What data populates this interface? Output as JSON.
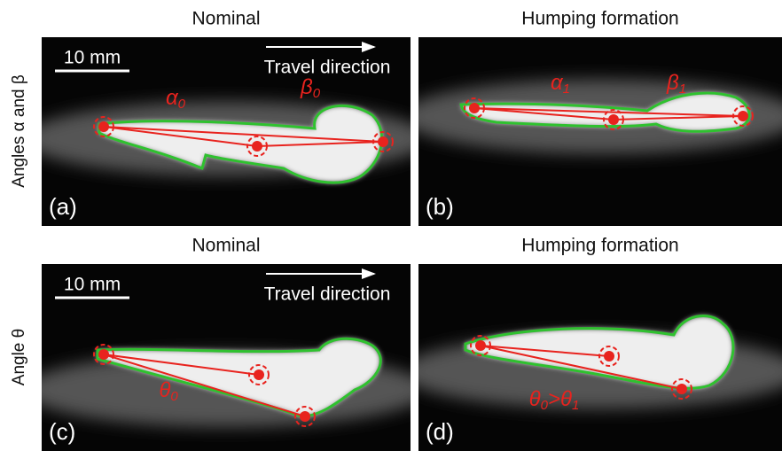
{
  "row_labels": [
    "Angles α and β",
    "Angle θ"
  ],
  "panels": [
    {
      "title": "Nominal",
      "label": "(a)",
      "scale_bar": "10 mm",
      "direction": "Travel direction",
      "angles": [
        [
          "α",
          "0"
        ],
        [
          "β",
          "0"
        ]
      ]
    },
    {
      "title": "Humping formation",
      "label": "(b)",
      "angles": [
        [
          "α",
          "1"
        ],
        [
          "β",
          "1"
        ]
      ]
    },
    {
      "title": "Nominal",
      "label": "(c)",
      "scale_bar": "10 mm",
      "direction": "Travel direction",
      "angles": [
        [
          "θ",
          "0"
        ]
      ]
    },
    {
      "title": "Humping formation",
      "label": "(d)",
      "angles": [
        [
          "θ",
          "0",
          ">θ",
          "1"
        ]
      ]
    }
  ]
}
